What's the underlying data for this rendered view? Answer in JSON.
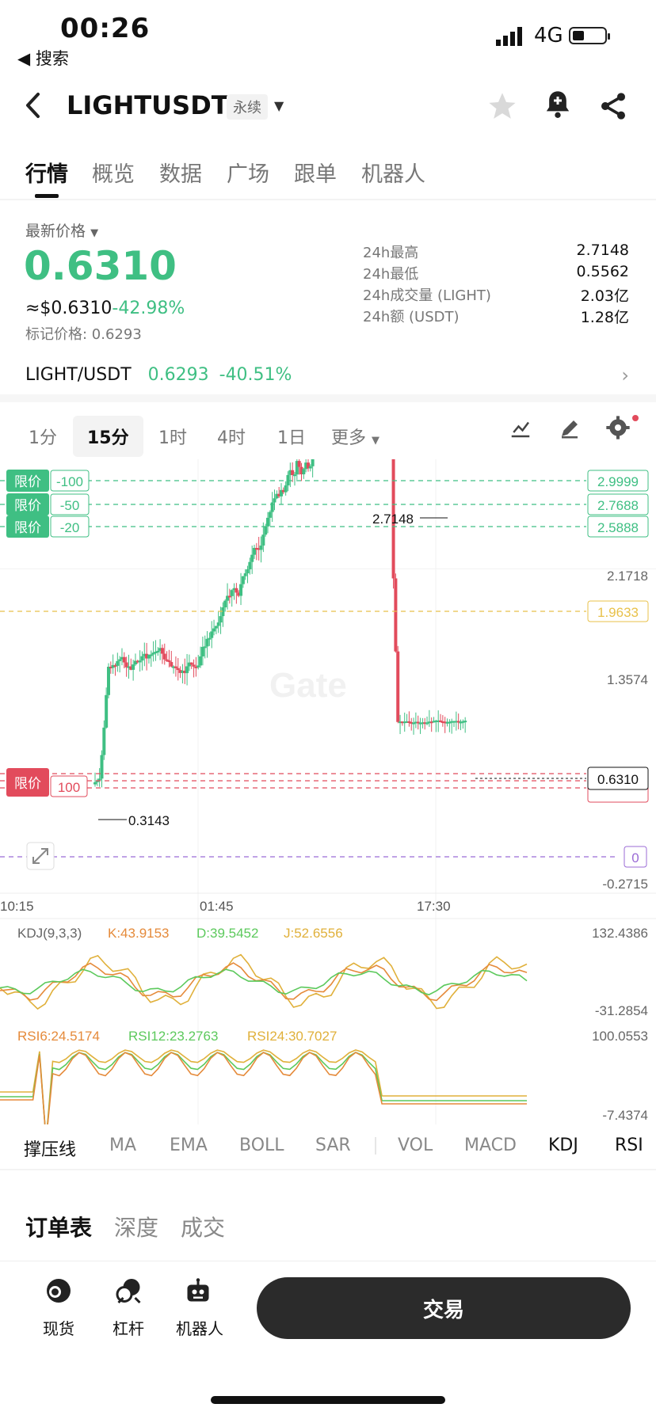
{
  "status_bar": {
    "time": "00:26",
    "back_label": "◀ 搜索",
    "network": "4G"
  },
  "header": {
    "symbol": "LIGHTUSDT",
    "badge": "永续",
    "back_icon": "chevron-left-icon",
    "icons": [
      "star-icon",
      "bell-plus-icon",
      "share-icon"
    ]
  },
  "tabs": [
    "行情",
    "概览",
    "数据",
    "广场",
    "跟单",
    "机器人"
  ],
  "price": {
    "label": "最新价格",
    "last": "0.6310",
    "usd": "≈$0.6310",
    "change": "-42.98%",
    "mark": "标记价格: 0.6293"
  },
  "stats": [
    {
      "label": "24h最高",
      "value": "2.7148"
    },
    {
      "label": "24h最低",
      "value": "0.5562"
    },
    {
      "label": "24h成交量 (LIGHT)",
      "value": "2.03亿"
    },
    {
      "label": "24h额 (USDT)",
      "value": "1.28亿"
    }
  ],
  "pair": {
    "name": "LIGHT/USDT",
    "price": "0.6293",
    "change": "-40.51%"
  },
  "timeframes": [
    "1分",
    "15分",
    "1时",
    "4时",
    "1日",
    "更多"
  ],
  "chart": {
    "watermark": "Gate",
    "y_labels": [
      "2.1718",
      "1.3574",
      "-0.2715"
    ],
    "high_label": "2.7148",
    "low_label": "0.3143",
    "price_tag": "0.6310",
    "alert_tag": "1.9633",
    "zero_tag": "0",
    "limit_tags": [
      "2.9999",
      "2.7688",
      "2.5888"
    ],
    "limit_label": "限价",
    "limit_offsets": [
      "-100",
      "-50",
      "-20"
    ],
    "buy_offset": "100",
    "x_labels": [
      "10:15",
      "01:45",
      "17:30"
    ],
    "kdj": {
      "title": "KDJ(9,3,3)",
      "k": "K:43.9153",
      "d": "D:39.5452",
      "j": "J:52.6556",
      "max": "132.4386",
      "min": "-31.2854"
    },
    "rsi": {
      "r6": "RSI6:24.5174",
      "r12": "RSI12:23.2763",
      "r24": "RSI24:30.7027",
      "max": "100.0553",
      "min": "-7.4374"
    }
  },
  "chart_data": {
    "type": "candlestick",
    "y_axis": [
      -0.2715,
      0,
      1.3574,
      2.1718
    ],
    "high": 2.7148,
    "low": 0.3143,
    "last": 0.631
  },
  "indicators": [
    "撑压线",
    "MA",
    "EMA",
    "BOLL",
    "SAR",
    "VOL",
    "MACD",
    "KDJ",
    "RSI"
  ],
  "orderbook_tabs": [
    "订单表",
    "深度",
    "成交"
  ],
  "bottom_nav": [
    {
      "label": "现货",
      "icon": "spot-icon"
    },
    {
      "label": "杠杆",
      "icon": "leverage-icon"
    },
    {
      "label": "机器人",
      "icon": "robot-icon"
    }
  ],
  "trade_button": "交易",
  "colors": {
    "up": "#3fbf83",
    "down": "#e24b5c",
    "alert": "#e8c14a",
    "zero": "#9b6bd6"
  }
}
